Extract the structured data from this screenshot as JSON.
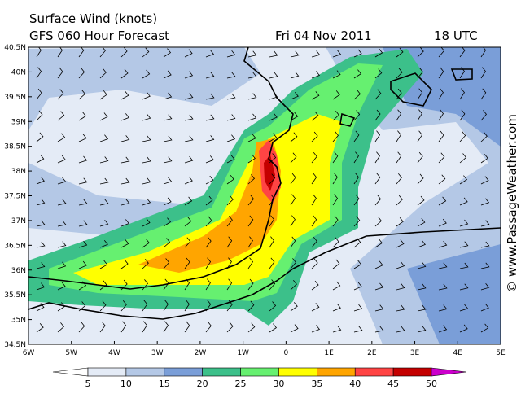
{
  "header": {
    "title": "Surface Wind (knots)",
    "subtitle": "GFS 060 Hour Forecast",
    "date": "Fri 04 Nov 2011",
    "time": "18 UTC"
  },
  "map": {
    "lat_labels": [
      "40.5N",
      "40N",
      "39.5N",
      "39N",
      "38.5N",
      "38N",
      "37.5N",
      "37N",
      "36.5N",
      "36N",
      "35.5N",
      "35N",
      "34.5N"
    ],
    "lon_labels": [
      "6W",
      "5W",
      "4W",
      "3W",
      "2W",
      "1W",
      "0",
      "1E",
      "2E",
      "3E",
      "4E",
      "5E"
    ]
  },
  "legend": {
    "labels": [
      5,
      10,
      15,
      20,
      25,
      30,
      35,
      40,
      45,
      50
    ],
    "colors": [
      "#ffffff",
      "#e4ebf6",
      "#b4c8e6",
      "#7a9ed8",
      "#3cc08a",
      "#66f070",
      "#ffff00",
      "#ffa500",
      "#ff4444",
      "#c40000",
      "#cc00cc"
    ]
  },
  "credit": "© www.PassageWeather.com"
}
